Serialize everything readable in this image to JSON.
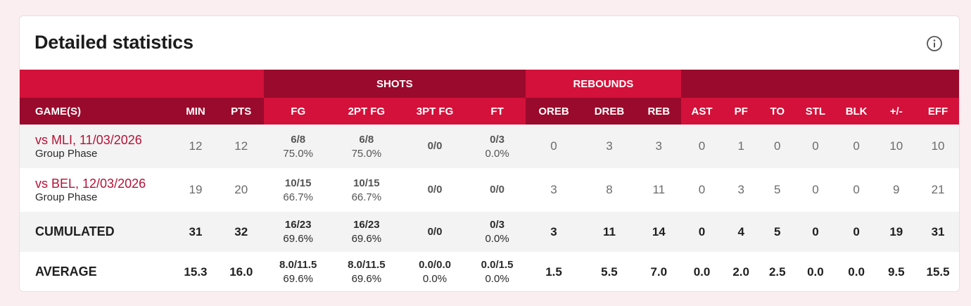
{
  "title": "Detailed statistics",
  "groups": {
    "shots": "SHOTS",
    "rebounds": "REBOUNDS"
  },
  "columns": {
    "games": "GAME(S)",
    "min": "MIN",
    "pts": "PTS",
    "fg": "FG",
    "fg2": "2PT FG",
    "fg3": "3PT FG",
    "ft": "FT",
    "oreb": "OREB",
    "dreb": "DREB",
    "reb": "REB",
    "ast": "AST",
    "pf": "PF",
    "to": "TO",
    "stl": "STL",
    "blk": "BLK",
    "pm": "+/-",
    "eff": "EFF"
  },
  "games": [
    {
      "opponent": "vs MLI, 11/03/2026",
      "phase": "Group Phase",
      "min": "12",
      "pts": "12",
      "fg_made": "6/8",
      "fg_pct": "75.0%",
      "fg2_made": "6/8",
      "fg2_pct": "75.0%",
      "fg3_made": "0/0",
      "ft_made": "0/3",
      "ft_pct": "0.0%",
      "oreb": "0",
      "dreb": "3",
      "reb": "3",
      "ast": "0",
      "pf": "1",
      "to": "0",
      "stl": "0",
      "blk": "0",
      "pm": "10",
      "eff": "10"
    },
    {
      "opponent": "vs BEL, 12/03/2026",
      "phase": "Group Phase",
      "min": "19",
      "pts": "20",
      "fg_made": "10/15",
      "fg_pct": "66.7%",
      "fg2_made": "10/15",
      "fg2_pct": "66.7%",
      "fg3_made": "0/0",
      "ft_made": "0/0",
      "oreb": "3",
      "dreb": "8",
      "reb": "11",
      "ast": "0",
      "pf": "3",
      "to": "5",
      "stl": "0",
      "blk": "0",
      "pm": "9",
      "eff": "21"
    }
  ],
  "cumulated": {
    "label": "CUMULATED",
    "min": "31",
    "pts": "32",
    "fg_made": "16/23",
    "fg_pct": "69.6%",
    "fg2_made": "16/23",
    "fg2_pct": "69.6%",
    "fg3_made": "0/0",
    "ft_made": "0/3",
    "ft_pct": "0.0%",
    "oreb": "3",
    "dreb": "11",
    "reb": "14",
    "ast": "0",
    "pf": "4",
    "to": "5",
    "stl": "0",
    "blk": "0",
    "pm": "19",
    "eff": "31"
  },
  "average": {
    "label": "AVERAGE",
    "min": "15.3",
    "pts": "16.0",
    "fg_made": "8.0/11.5",
    "fg_pct": "69.6%",
    "fg2_made": "8.0/11.5",
    "fg2_pct": "69.6%",
    "fg3_made": "0.0/0.0",
    "fg3_pct": "0.0%",
    "ft_made": "0.0/1.5",
    "ft_pct": "0.0%",
    "oreb": "1.5",
    "dreb": "5.5",
    "reb": "7.0",
    "ast": "0.0",
    "pf": "2.0",
    "to": "2.5",
    "stl": "0.0",
    "blk": "0.0",
    "pm": "9.5",
    "eff": "15.5"
  },
  "colors": {
    "header_red": "#d3113a",
    "header_dark": "#9a0a2c",
    "link": "#b41236"
  },
  "icons": {
    "info": "info-icon"
  }
}
